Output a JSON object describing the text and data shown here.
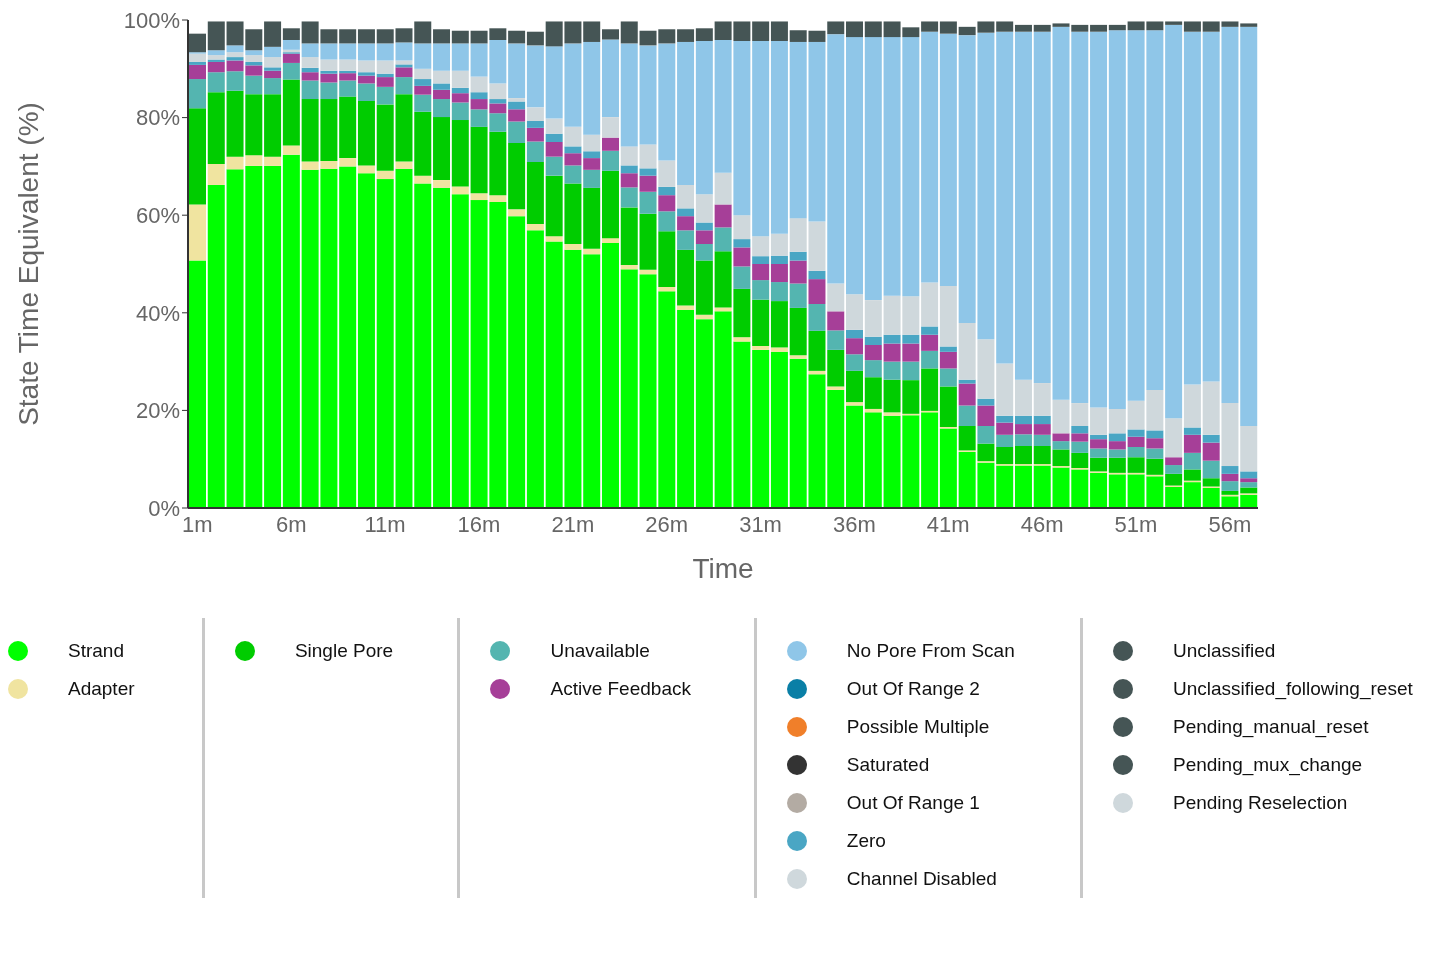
{
  "chart_data": {
    "type": "bar",
    "stacked": true,
    "xlabel": "Time",
    "ylabel": "State Time Equivalent (%)",
    "legend": "bottom",
    "categories": [
      "1m",
      null,
      null,
      null,
      null,
      "6m",
      null,
      null,
      null,
      null,
      "11m",
      null,
      null,
      null,
      null,
      "16m",
      null,
      null,
      null,
      null,
      "21m",
      null,
      null,
      null,
      null,
      "26m",
      null,
      null,
      null,
      null,
      "31m",
      null,
      null,
      null,
      null,
      "36m",
      null,
      null,
      null,
      null,
      "41m",
      null,
      null,
      null,
      null,
      "46m",
      null,
      null,
      null,
      null,
      "51m",
      null,
      null,
      null,
      null,
      "56m",
      null
    ],
    "ylim": [
      0,
      100
    ],
    "yticks": [
      {
        "value": 0,
        "label": "0%"
      },
      {
        "value": 20,
        "label": "20%"
      },
      {
        "value": 40,
        "label": "40%"
      },
      {
        "value": 60,
        "label": "60%"
      },
      {
        "value": 80,
        "label": "80%"
      },
      {
        "value": 100,
        "label": "100%"
      }
    ],
    "series": [
      {
        "name": "Strand",
        "color": "#00ff00",
        "values": [
          50.7,
          66.2,
          69.4,
          70.1,
          70.1,
          72.4,
          69.3,
          69.5,
          70.0,
          68.6,
          67.4,
          69.5,
          66.5,
          65.6,
          64.3,
          63.1,
          62.7,
          59.8,
          56.9,
          54.6,
          52.9,
          52.0,
          54.3,
          48.9,
          47.9,
          44.4,
          40.6,
          38.7,
          40.3,
          34.1,
          32.4,
          32.0,
          30.6,
          27.4,
          24.2,
          21.0,
          19.6,
          18.9,
          19.0,
          19.6,
          16.3,
          11.5,
          9.3,
          8.7,
          8.7,
          8.7,
          8.3,
          7.9,
          7.2,
          6.9,
          6.9,
          6.5,
          4.3,
          5.3,
          4.1,
          2.4,
          2.7
        ]
      },
      {
        "name": "Adapter",
        "color": "#f0e4a0",
        "values": [
          11.5,
          4.3,
          2.6,
          2.2,
          1.9,
          1.9,
          1.7,
          1.6,
          1.7,
          1.6,
          1.7,
          1.5,
          1.6,
          1.6,
          1.6,
          1.4,
          1.4,
          1.4,
          1.3,
          1.1,
          1.2,
          1.1,
          1.0,
          0.9,
          0.9,
          0.9,
          0.9,
          0.9,
          0.8,
          0.9,
          0.8,
          0.9,
          0.7,
          0.7,
          0.7,
          0.7,
          0.7,
          0.7,
          0.3,
          0.3,
          0.3,
          0.3,
          0.3,
          0.3,
          0.3,
          0.3,
          0.3,
          0.3,
          0.3,
          0.3,
          0.3,
          0.3,
          0.3,
          0.3,
          0.3,
          0.3,
          0.3
        ]
      },
      {
        "name": "Single Pore",
        "color": "#00cc00",
        "values": [
          19.7,
          14.7,
          13.5,
          12.5,
          12.8,
          13.5,
          12.8,
          12.7,
          12.6,
          13.2,
          13.6,
          13.8,
          13.1,
          12.9,
          13.6,
          13.6,
          13.0,
          13.6,
          12.7,
          12.4,
          12.4,
          12.5,
          13.8,
          11.8,
          11.5,
          11.4,
          11.4,
          11.1,
          11.5,
          9.9,
          9.5,
          9.5,
          9.7,
          8.2,
          7.5,
          6.4,
          6.5,
          6.7,
          6.9,
          8.7,
          8.3,
          5.0,
          3.6,
          3.5,
          3.7,
          3.7,
          3.4,
          3.1,
          2.8,
          3.1,
          3.2,
          3.3,
          2.4,
          2.3,
          1.7,
          0.8,
          1.2
        ]
      },
      {
        "name": "Unavailable",
        "color": "#54b5b0",
        "values": [
          6.0,
          4.1,
          4.0,
          3.8,
          3.3,
          3.4,
          3.8,
          3.4,
          3.3,
          3.6,
          3.6,
          3.5,
          3.5,
          3.7,
          3.6,
          3.6,
          3.8,
          4.4,
          4.2,
          3.9,
          3.7,
          3.7,
          4.1,
          4.1,
          4.5,
          4.1,
          4.0,
          3.4,
          4.9,
          4.6,
          4.0,
          3.9,
          5.0,
          5.5,
          4.0,
          3.4,
          3.5,
          3.7,
          3.8,
          3.6,
          3.7,
          4.2,
          3.6,
          2.5,
          2.4,
          2.3,
          1.7,
          2.3,
          1.9,
          1.7,
          2.1,
          2.1,
          1.8,
          3.4,
          3.6,
          2.0,
          1.1
        ]
      },
      {
        "name": "Active Feedback",
        "color": "#a63f98",
        "values": [
          2.9,
          2.1,
          2.2,
          2.1,
          1.5,
          1.9,
          1.7,
          1.8,
          1.5,
          1.6,
          2.0,
          2.0,
          1.8,
          1.9,
          1.9,
          2.1,
          2.0,
          2.5,
          2.8,
          3.0,
          2.5,
          2.4,
          2.7,
          2.9,
          3.3,
          3.3,
          2.9,
          2.8,
          4.7,
          3.9,
          3.3,
          3.7,
          4.7,
          5.1,
          3.9,
          3.3,
          3.1,
          3.7,
          3.7,
          3.3,
          3.4,
          4.5,
          4.2,
          2.5,
          2.1,
          2.2,
          1.6,
          1.7,
          1.9,
          1.7,
          2.1,
          2.1,
          1.6,
          3.7,
          3.7,
          1.5,
          0.8
        ]
      },
      {
        "name": "Out Of Range 2",
        "color": "#0a7fa6",
        "values": [
          0,
          0,
          0,
          0,
          0,
          0,
          0,
          0,
          0,
          0,
          0,
          0,
          0,
          0,
          0,
          0,
          0,
          0,
          0,
          0,
          0,
          0,
          0,
          0,
          0,
          0,
          0,
          0,
          0,
          0,
          0,
          0,
          0,
          0,
          0,
          0,
          0,
          0,
          0,
          0,
          0,
          0,
          0,
          0,
          0,
          0,
          0,
          0,
          0,
          0,
          0,
          0,
          0,
          0,
          0,
          0,
          0
        ]
      },
      {
        "name": "Possible Multiple",
        "color": "#f07f2a",
        "values": [
          0,
          0,
          0,
          0,
          0,
          0,
          0,
          0,
          0,
          0,
          0,
          0,
          0,
          0,
          0,
          0,
          0,
          0,
          0,
          0,
          0,
          0,
          0,
          0,
          0,
          0,
          0,
          0,
          0,
          0,
          0,
          0,
          0,
          0,
          0,
          0,
          0,
          0,
          0,
          0,
          0,
          0,
          0,
          0,
          0,
          0,
          0,
          0,
          0,
          0,
          0,
          0,
          0,
          0,
          0,
          0,
          0
        ]
      },
      {
        "name": "Saturated",
        "color": "#333333",
        "values": [
          0,
          0,
          0,
          0,
          0,
          0,
          0,
          0,
          0,
          0,
          0,
          0,
          0,
          0,
          0,
          0,
          0,
          0,
          0,
          0,
          0,
          0,
          0,
          0,
          0,
          0,
          0,
          0,
          0,
          0,
          0,
          0,
          0,
          0,
          0,
          0,
          0,
          0,
          0,
          0,
          0,
          0,
          0,
          0,
          0,
          0,
          0,
          0,
          0,
          0,
          0,
          0,
          0,
          0,
          0,
          0,
          0
        ]
      },
      {
        "name": "Out Of Range 1",
        "color": "#b3aba3",
        "values": [
          0,
          0,
          0,
          0,
          0,
          0,
          0,
          0,
          0,
          0,
          0,
          0,
          0,
          0,
          0,
          0,
          0,
          0,
          0,
          0,
          0,
          0,
          0,
          0,
          0,
          0,
          0,
          0,
          0,
          0,
          0,
          0,
          0,
          0,
          0,
          0,
          0,
          0,
          0,
          0,
          0,
          0,
          0,
          0,
          0,
          0,
          0,
          0,
          0,
          0,
          0,
          0,
          0,
          0,
          0,
          0,
          0
        ]
      },
      {
        "name": "Zero",
        "color": "#4aa6c4",
        "values": [
          0.6,
          0.5,
          0.7,
          0.7,
          0.7,
          0.3,
          0.9,
          0.6,
          0.5,
          0.7,
          0.7,
          0.6,
          1.4,
          1.3,
          1.1,
          1.4,
          0.9,
          1.6,
          1.4,
          1.7,
          1.4,
          1.4,
          0,
          1.6,
          1.5,
          1.7,
          1.6,
          1.6,
          0,
          1.7,
          1.6,
          1.7,
          1.8,
          1.7,
          0,
          1.7,
          1.7,
          1.8,
          1.8,
          1.7,
          1.1,
          0.8,
          1.4,
          1.4,
          1.7,
          1.7,
          0,
          1.5,
          0.9,
          1.6,
          1.5,
          1.6,
          0,
          1.5,
          1.6,
          1.6,
          1.4
        ]
      },
      {
        "name": "Channel Disabled",
        "color": "#cfd8dc",
        "values": [
          1.7,
          0.9,
          1.0,
          1.4,
          2.1,
          0.5,
          2.2,
          2.3,
          2.3,
          2.4,
          2.7,
          0.8,
          2.1,
          2.6,
          3.5,
          3.2,
          3.2,
          0.7,
          2.8,
          3.1,
          4.0,
          3.4,
          4.2,
          3.9,
          4.9,
          5.4,
          4.8,
          5.8,
          6.5,
          4.9,
          4.1,
          4.5,
          6.9,
          10.1,
          5.7,
          7.3,
          7.5,
          8.0,
          7.9,
          9.0,
          12.4,
          11.6,
          12.2,
          10.7,
          7.4,
          6.7,
          6.9,
          4.7,
          5.6,
          5.0,
          5.9,
          8.3,
          8.0,
          8.8,
          10.9,
          12.9,
          9.3
        ]
      },
      {
        "name": "No Pore From Scan",
        "color": "#8fc6e8",
        "values": [
          0.3,
          1.0,
          1.4,
          1.0,
          2.1,
          2.0,
          2.8,
          3.3,
          3.3,
          3.5,
          3.5,
          3.7,
          5.2,
          5.6,
          5.6,
          6.8,
          8.9,
          11.2,
          12.7,
          14.8,
          17.1,
          19.0,
          15.9,
          21.1,
          20.3,
          24.0,
          29.3,
          31.4,
          27.2,
          35.7,
          40.0,
          39.5,
          36.1,
          36.8,
          51.1,
          52.7,
          53.9,
          53.0,
          53.1,
          51.4,
          51.7,
          59.0,
          62.8,
          68.0,
          71.3,
          72.0,
          76.4,
          76.1,
          77.0,
          77.6,
          75.9,
          73.7,
          80.6,
          72.3,
          71.7,
          77.1,
          81.8
        ]
      },
      {
        "name": "Unclassified",
        "color": "#455555",
        "values": [
          3.8,
          5.9,
          4.9,
          4.3,
          5.2,
          2.4,
          4.5,
          2.9,
          2.9,
          2.9,
          2.9,
          2.9,
          4.5,
          2.9,
          2.6,
          2.6,
          2.4,
          2.6,
          2.8,
          5.1,
          4.5,
          4.2,
          2.1,
          4.5,
          3.0,
          2.9,
          2.6,
          2.6,
          3.8,
          4.0,
          4.0,
          4.0,
          2.4,
          2.3,
          2.6,
          3.2,
          3.2,
          3.2,
          2.0,
          2.1,
          2.5,
          1.7,
          2.3,
          2.1,
          1.4,
          1.4,
          0.7,
          1.4,
          1.4,
          1.1,
          1.8,
          1.8,
          0.7,
          2.1,
          2.1,
          1.1,
          0.7
        ]
      },
      {
        "name": "Unclassified_following_reset",
        "color": "#455555",
        "values": [
          0,
          0,
          0,
          0,
          0,
          0,
          0,
          0,
          0,
          0,
          0,
          0,
          0,
          0,
          0,
          0,
          0,
          0,
          0,
          0,
          0,
          0,
          0,
          0,
          0,
          0,
          0,
          0,
          0,
          0,
          0,
          0,
          0,
          0,
          0,
          0,
          0,
          0,
          0,
          0,
          0,
          0,
          0,
          0,
          0,
          0,
          0,
          0,
          0,
          0,
          0,
          0,
          0,
          0,
          0,
          0,
          0
        ]
      },
      {
        "name": "Pending_manual_reset",
        "color": "#455555",
        "values": [
          0,
          0,
          0,
          0,
          0,
          0,
          0,
          0,
          0,
          0,
          0,
          0,
          0,
          0,
          0,
          0,
          0,
          0,
          0,
          0,
          0,
          0,
          0,
          0,
          0,
          0,
          0,
          0,
          0,
          0,
          0,
          0,
          0,
          0,
          0,
          0,
          0,
          0,
          0,
          0,
          0,
          0,
          0,
          0,
          0,
          0,
          0,
          0,
          0,
          0,
          0,
          0,
          0,
          0,
          0,
          0,
          0
        ]
      },
      {
        "name": "Pending_mux_change",
        "color": "#455555",
        "values": [
          0,
          0,
          0,
          0,
          0,
          0,
          0,
          0,
          0,
          0,
          0,
          0,
          0,
          0,
          0,
          0,
          0,
          0,
          0,
          0,
          0,
          0,
          0,
          0,
          0,
          0,
          0,
          0,
          0,
          0,
          0,
          0,
          0,
          0,
          0,
          0,
          0,
          0,
          0,
          0,
          0,
          0,
          0,
          0,
          0,
          0,
          0,
          0,
          0,
          0,
          0,
          0,
          0,
          0,
          0,
          0,
          0
        ]
      },
      {
        "name": "Pending Reselection",
        "color": "#cfd8dc",
        "values": [
          0,
          0,
          0,
          0,
          0,
          0,
          0,
          0,
          0,
          0,
          0,
          0,
          0,
          0,
          0,
          0,
          0,
          0,
          0,
          0,
          0,
          0,
          0,
          0,
          0,
          0,
          0,
          0,
          0,
          0,
          0,
          0,
          0,
          0,
          0,
          0,
          0,
          0,
          0,
          0,
          0,
          0,
          0,
          0,
          0,
          0,
          0,
          0,
          0,
          0,
          0,
          0,
          0,
          0,
          0,
          0,
          0
        ]
      }
    ]
  }
}
